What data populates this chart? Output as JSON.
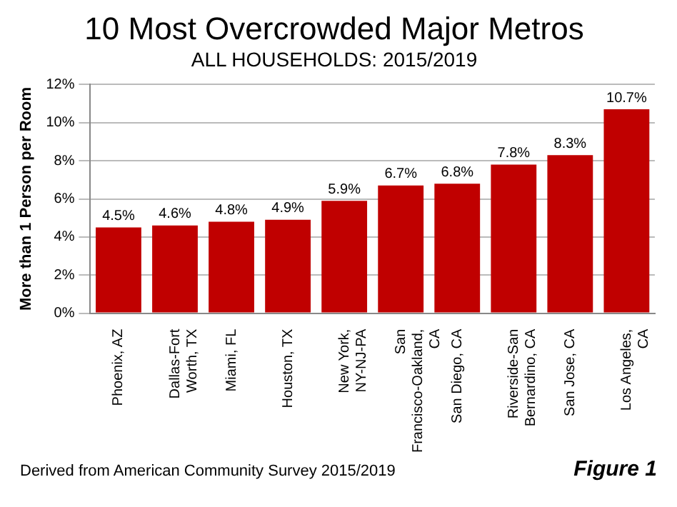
{
  "chart_data": {
    "type": "bar",
    "title": "10 Most Overcrowded Major Metros",
    "subtitle": "ALL HOUSEHOLDS: 2015/2019",
    "ylabel": "More than 1 Person per Room",
    "categories": [
      "Phoenix, AZ",
      "Dallas-Fort Worth, TX",
      "Miami, FL",
      "Houston, TX",
      "New York, NY-NJ-PA",
      "San Francisco-Oakland, CA",
      "San Diego, CA",
      "Riverside-San Bernardino, CA",
      "San Jose, CA",
      "Los Angeles, CA"
    ],
    "values": [
      4.5,
      4.6,
      4.8,
      4.9,
      5.9,
      6.7,
      6.8,
      7.8,
      8.3,
      10.7
    ],
    "value_labels": [
      "4.5%",
      "4.6%",
      "4.8%",
      "4.9%",
      "5.9%",
      "6.7%",
      "6.8%",
      "7.8%",
      "8.3%",
      "10.7%"
    ],
    "color": "#c00000",
    "ylim": [
      0,
      12
    ],
    "yticks": [
      {
        "value": 0,
        "label": "0%"
      },
      {
        "value": 2,
        "label": "2%"
      },
      {
        "value": 4,
        "label": "4%"
      },
      {
        "value": 6,
        "label": "6%"
      },
      {
        "value": 8,
        "label": "8%"
      },
      {
        "value": 10,
        "label": "10%"
      },
      {
        "value": 12,
        "label": "12%"
      }
    ],
    "grid": "y",
    "annotations": [
      "Derived from American Community Survey 2015/2019",
      "Figure 1"
    ]
  }
}
